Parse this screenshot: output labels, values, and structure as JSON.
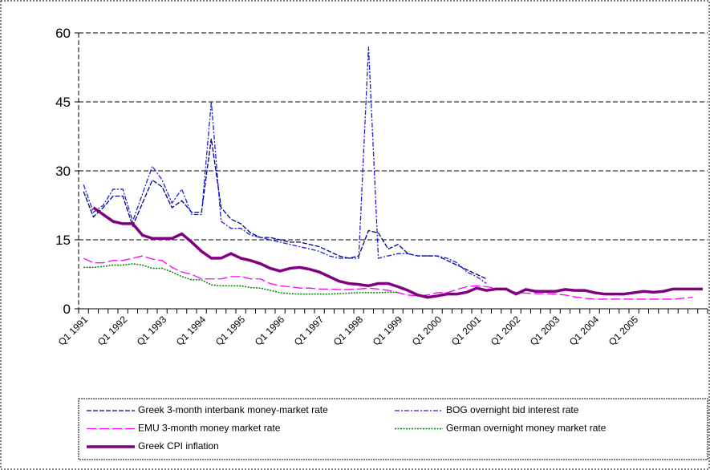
{
  "chart_data": {
    "type": "line",
    "categories": [
      "Q1 1991",
      null,
      null,
      null,
      "Q1 1992",
      null,
      null,
      null,
      "Q1 1993",
      null,
      null,
      null,
      "Q1 1994",
      null,
      null,
      null,
      "Q1 1995",
      null,
      null,
      null,
      "Q1 1996",
      null,
      null,
      null,
      "Q1 1997",
      null,
      null,
      null,
      "Q1 1998",
      null,
      null,
      null,
      "Q1 1999",
      null,
      null,
      null,
      "Q1 2000",
      null,
      null,
      null,
      "Q1 2001",
      null,
      null,
      null,
      "Q1 2002",
      null,
      null,
      null,
      "Q1 2003",
      null,
      null,
      null,
      "Q1 2004",
      null,
      null,
      null,
      "Q1 2005",
      null,
      null,
      null,
      null,
      null,
      null,
      null
    ],
    "ylim": [
      0,
      60
    ],
    "yticks": [
      0,
      15,
      30,
      45,
      60
    ],
    "grid": true,
    "series": [
      {
        "name": "Greek 3-month interbank money-market rate",
        "color": "#000080",
        "line_style": "dashed",
        "width": 1.3,
        "values": [
          25.5,
          20,
          22,
          24.5,
          24.5,
          18,
          23,
          28,
          26.5,
          22,
          23.5,
          21,
          21,
          37,
          22,
          19.5,
          18.5,
          16.5,
          15.5,
          15.5,
          15,
          14.5,
          14.5,
          14,
          13.5,
          12.5,
          11.5,
          11,
          11.5,
          17,
          16.5,
          13,
          14,
          12,
          11.5,
          11.5,
          11.5,
          10.5,
          9.5,
          8.5,
          7.5,
          6.5,
          null,
          null,
          null,
          null,
          null,
          null,
          null,
          null,
          null,
          null,
          null,
          null,
          null,
          null,
          null,
          null,
          null,
          null,
          null,
          null,
          null,
          null
        ]
      },
      {
        "name": "BOG overnight bid interest rate",
        "color": "#1f1fe0",
        "line_style": "dash-dot",
        "width": 1.3,
        "values": [
          27,
          21,
          22.5,
          26,
          26,
          19,
          25,
          31,
          28,
          23,
          26,
          20.5,
          20.5,
          45,
          19,
          17.5,
          17.5,
          16,
          15.5,
          15,
          14.5,
          14,
          13.5,
          13,
          12.5,
          11.5,
          11,
          11,
          11,
          57,
          11,
          11.5,
          12,
          12,
          11.5,
          11.5,
          11.5,
          11,
          10,
          8,
          7,
          5.5,
          null,
          null,
          null,
          null,
          null,
          null,
          null,
          null,
          null,
          null,
          null,
          null,
          null,
          null,
          null,
          null,
          null,
          null,
          null,
          null,
          null,
          null
        ]
      },
      {
        "name": "EMU 3-month money market rate",
        "color": "#ff00ff",
        "line_style": "long-dash",
        "width": 1.3,
        "values": [
          11,
          10,
          10,
          10.5,
          10.5,
          11,
          11.5,
          10.8,
          10.5,
          9,
          8,
          7.5,
          6.5,
          6.5,
          6.5,
          7,
          7,
          6.5,
          6.5,
          5.5,
          5,
          4.8,
          4.5,
          4.5,
          4.3,
          4.3,
          4.2,
          4.2,
          4.3,
          4.5,
          4.3,
          4,
          3.5,
          3,
          2.8,
          3,
          3.5,
          3.5,
          4.2,
          4.8,
          5,
          4.8,
          4.5,
          4,
          3.6,
          3.4,
          3.3,
          3.3,
          3.2,
          3,
          2.6,
          2.3,
          2.1,
          2.1,
          2.1,
          2.1,
          2.1,
          2.1,
          2.1,
          2.1,
          2.1,
          2.3,
          2.5,
          null
        ]
      },
      {
        "name": "German overnight money market rate",
        "color": "#008000",
        "line_style": "dotted",
        "width": 1.5,
        "values": [
          9,
          9,
          9.2,
          9.5,
          9.5,
          9.8,
          9.5,
          8.8,
          8.8,
          8,
          7,
          6.3,
          6.3,
          5.2,
          5,
          5,
          5,
          4.6,
          4.5,
          4,
          3.5,
          3.3,
          3.2,
          3.2,
          3.2,
          3.2,
          3.3,
          3.4,
          3.5,
          3.5,
          3.5,
          3.6,
          3.6,
          null,
          null,
          null,
          null,
          null,
          null,
          null,
          null,
          null,
          null,
          null,
          null,
          null,
          null,
          null,
          null,
          null,
          null,
          null,
          null,
          null,
          null,
          null,
          null,
          null,
          null,
          null,
          null,
          null,
          null,
          null
        ]
      },
      {
        "name": "Greek CPI inflation",
        "color": "#800080",
        "line_style": "solid",
        "width": 3.5,
        "values": [
          null,
          22,
          20.5,
          19,
          18.5,
          18.5,
          16,
          15.3,
          15.3,
          15.3,
          16.3,
          14.5,
          12.5,
          11,
          11,
          12,
          11,
          10.5,
          9.8,
          8.8,
          8.2,
          8.8,
          9,
          8.6,
          8,
          7,
          6,
          5.5,
          5.3,
          5,
          5.5,
          5.5,
          4.8,
          4,
          3,
          2.5,
          2.8,
          3.2,
          3.2,
          3.6,
          4.5,
          4,
          4.3,
          4.3,
          3.2,
          4.2,
          3.8,
          3.8,
          3.8,
          4.2,
          4,
          4,
          3.5,
          3.2,
          3.2,
          3.2,
          3.5,
          3.8,
          3.6,
          3.8,
          4.3,
          4.3,
          4.3,
          4.3
        ]
      }
    ]
  }
}
